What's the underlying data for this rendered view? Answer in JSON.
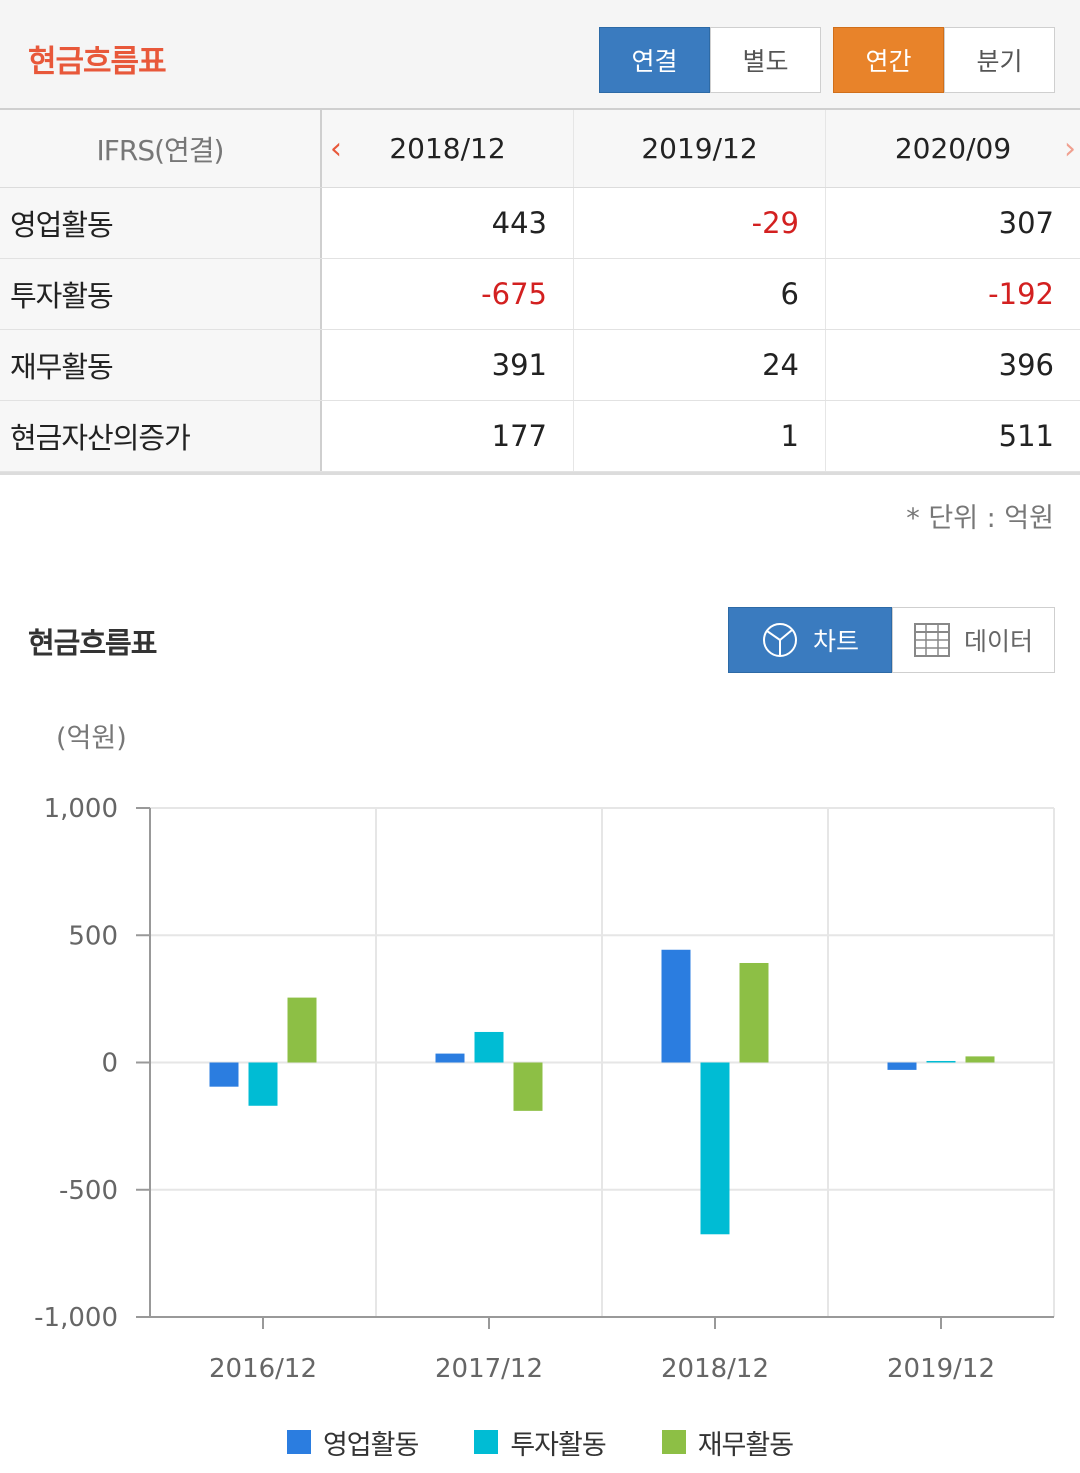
{
  "header": {
    "title": "현금흐름표",
    "consolidation": [
      {
        "label": "연결",
        "active": true
      },
      {
        "label": "별도",
        "active": false
      }
    ],
    "period": [
      {
        "label": "연간",
        "active": true
      },
      {
        "label": "분기",
        "active": false
      }
    ]
  },
  "table": {
    "corner_label": "IFRS(연결)",
    "columns": [
      "2018/12",
      "2019/12",
      "2020/09"
    ],
    "rows": [
      {
        "label": "영업활동",
        "values": [
          "443",
          "-29",
          "307"
        ]
      },
      {
        "label": "투자활동",
        "values": [
          "-675",
          "6",
          "-192"
        ]
      },
      {
        "label": "재무활동",
        "values": [
          "391",
          "24",
          "396"
        ]
      },
      {
        "label": "현금자산의증가",
        "values": [
          "177",
          "1",
          "511"
        ]
      }
    ],
    "unit_note": "* 단위 : 억원"
  },
  "chart_section": {
    "title": "현금흐름표",
    "toggle_chart": "차트",
    "toggle_data": "데이터",
    "y_unit": "(억원)"
  },
  "chart_data": {
    "type": "bar",
    "categories": [
      "2016/12",
      "2017/12",
      "2018/12",
      "2019/12"
    ],
    "series": [
      {
        "name": "영업활동",
        "color": "#2b7de0",
        "values": [
          -95,
          35,
          443,
          -29
        ]
      },
      {
        "name": "투자활동",
        "color": "#00bcd4",
        "values": [
          -170,
          120,
          -675,
          6
        ]
      },
      {
        "name": "재무활동",
        "color": "#8dbf45",
        "values": [
          255,
          -190,
          391,
          24
        ]
      }
    ],
    "ylim": [
      -1000,
      1000
    ],
    "yticks": [
      1000,
      500,
      0,
      -500,
      -1000
    ],
    "ytick_labels": [
      "1,000",
      "500",
      "0",
      "-500",
      "-1,000"
    ],
    "grid": true,
    "legend_position": "bottom"
  }
}
